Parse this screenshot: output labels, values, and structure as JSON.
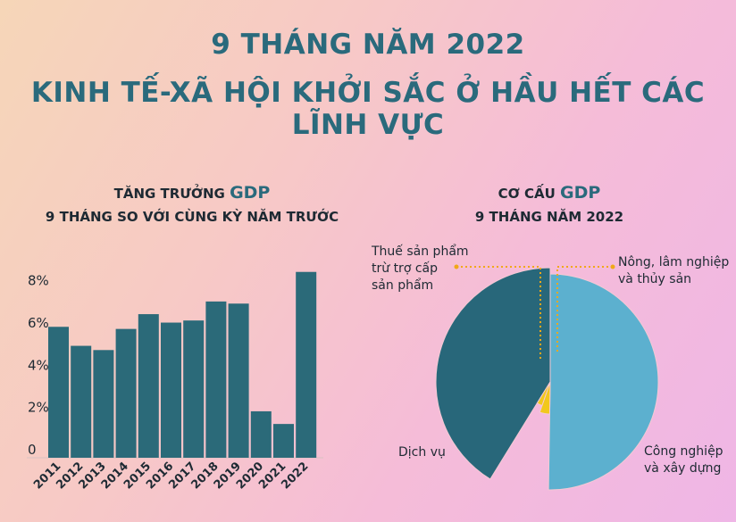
{
  "header": {
    "line1": "9 THÁNG NĂM 2022",
    "line2": "KINH TẾ-XÃ HỘI KHỞI SẮC Ở HẦU HẾT CÁC LĨNH VỰC"
  },
  "growth_title": {
    "pre": "TĂNG TRƯỞNG ",
    "hl": "GDP",
    "line2": "9 THÁNG SO VỚI CÙNG KỲ NĂM TRƯỚC"
  },
  "structure_title": {
    "pre": "CƠ CẤU ",
    "hl": "GDP",
    "line2": "9 THÁNG NĂM 2022"
  },
  "colors": {
    "bar": "#2b6a79",
    "pie_services": "#28677a",
    "pie_industry": "#5cb0cf",
    "pie_small": "#f2c81c",
    "title": "#2a6a7c"
  },
  "chart_data": [
    {
      "type": "bar",
      "categories": [
        "2011",
        "2012",
        "2013",
        "2014",
        "2015",
        "2016",
        "2017",
        "2018",
        "2019",
        "2020",
        "2021",
        "2022"
      ],
      "values": [
        6.2,
        5.3,
        5.1,
        6.1,
        6.8,
        6.4,
        6.5,
        7.4,
        7.3,
        2.2,
        1.6,
        8.8
      ],
      "yticks": [
        "0",
        "2%",
        "4%",
        "6%",
        "8%"
      ],
      "ylim": [
        0,
        9
      ]
    },
    {
      "type": "pie",
      "slices": [
        {
          "label": "Dịch vụ",
          "value": 41
        },
        {
          "label": "Công nghiệp và xây dựng",
          "value": 50
        },
        {
          "label": "Nông, lâm nghiệp và thủy sản",
          "value": 5
        },
        {
          "label": "Thuế sản phẩm trừ trợ cấp sản phẩm",
          "value": 3.5
        }
      ],
      "labels": {
        "tax": [
          "Thuế sản phẩm",
          "trừ trợ cấp",
          "sản phẩm"
        ],
        "agri": [
          "Nông, lâm nghiệp",
          "và thủy sản"
        ],
        "industry": [
          "Công nghiệp",
          "và xây dựng"
        ],
        "services": [
          "Dịch vụ"
        ]
      }
    }
  ]
}
